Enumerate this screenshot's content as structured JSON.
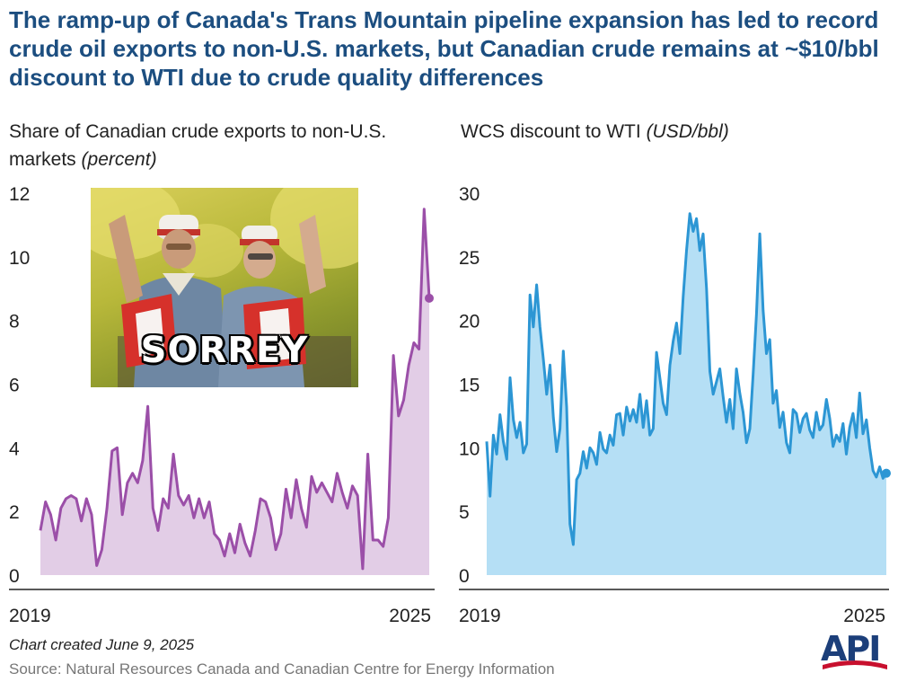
{
  "title": "The ramp-up of Canada's Trans Mountain pipeline expansion has led to record crude oil exports to non-U.S. markets, but Canadian crude remains at ~$10/bbl discount to WTI due to crude quality differences",
  "footer": {
    "date": "Chart created June 9, 2025",
    "source": "Source: Natural Resources Canada and Canadian Centre for Energy Information"
  },
  "logo": {
    "text": "API",
    "name": "api-logo"
  },
  "meme": {
    "caption": "SORREY"
  },
  "colors": {
    "title": "#1c4e80",
    "left_line": "#9b4fa8",
    "left_fill": "#e2cde6",
    "right_line": "#2c96d4",
    "right_fill": "#b5dff5"
  },
  "chart_data": [
    {
      "type": "area",
      "title_main": "Share of Canadian crude exports to non-U.S. markets",
      "title_unit": "(percent)",
      "x_labels": [
        "2019",
        "2025"
      ],
      "ylim": [
        0,
        12
      ],
      "y_ticks": [
        "0",
        "2",
        "4",
        "6",
        "8",
        "10",
        "12"
      ],
      "x_start": "2019-01",
      "x_end": "2025-04",
      "values": [
        1.4,
        2.3,
        1.9,
        1.1,
        2.1,
        2.4,
        2.5,
        2.4,
        1.7,
        2.4,
        1.9,
        0.3,
        0.8,
        2.1,
        3.9,
        4.0,
        1.9,
        2.9,
        3.2,
        2.9,
        3.6,
        5.3,
        2.1,
        1.4,
        2.4,
        2.1,
        3.8,
        2.5,
        2.2,
        2.5,
        1.8,
        2.4,
        1.8,
        2.3,
        1.3,
        1.1,
        0.6,
        1.3,
        0.7,
        1.6,
        1.0,
        0.6,
        1.4,
        2.4,
        2.3,
        1.8,
        0.8,
        1.3,
        2.7,
        1.8,
        3.0,
        2.1,
        1.5,
        3.1,
        2.6,
        2.9,
        2.6,
        2.3,
        3.2,
        2.6,
        2.1,
        2.8,
        2.5,
        0.2,
        3.8,
        1.1,
        1.1,
        0.9,
        1.8,
        6.9,
        5.0,
        5.5,
        6.6,
        7.3,
        7.1,
        11.5,
        8.7
      ],
      "line_color": "#9b4fa8",
      "fill_color": "#e2cde6"
    },
    {
      "type": "area",
      "title_main": "WCS discount to WTI",
      "title_unit": "(USD/bbl)",
      "x_labels": [
        "2019",
        "2025"
      ],
      "ylim": [
        0,
        30
      ],
      "y_ticks": [
        "0",
        "5",
        "10",
        "15",
        "20",
        "25",
        "30"
      ],
      "x_start": "2019-01",
      "x_end": "2025-05",
      "values": [
        10.5,
        6.2,
        11,
        9.5,
        12.6,
        10.5,
        9.1,
        15.5,
        12.2,
        10.8,
        12,
        9.6,
        10.3,
        22,
        19.5,
        22.8,
        19.5,
        17,
        14.2,
        16.5,
        12.4,
        9.7,
        11.5,
        17.6,
        13.2,
        4,
        2.4,
        7.5,
        8,
        9.7,
        8.4,
        10,
        9.6,
        8.7,
        11.2,
        9.9,
        9.6,
        11,
        10.2,
        12.6,
        12.7,
        11,
        13.2,
        12.1,
        13,
        12,
        14.2,
        11.6,
        13.7,
        11,
        11.5,
        17.5,
        15.5,
        13.5,
        12.6,
        16.5,
        18.4,
        19.8,
        17.4,
        21.9,
        25.5,
        28.4,
        27,
        28,
        25.5,
        26.8,
        22.5,
        16,
        14.2,
        15.2,
        16.2,
        14,
        12,
        13.8,
        11.5,
        16.2,
        14.3,
        12.8,
        10.4,
        11.5,
        15.8,
        20.5,
        26.8,
        20.8,
        17.4,
        18.5,
        13.5,
        14.5,
        11.6,
        12.8,
        10.4,
        9.6,
        13,
        12.7,
        11.2,
        12.3,
        12.7,
        11.4,
        10.8,
        12.8,
        11.4,
        11.8,
        13.8,
        12.3,
        10.1,
        11,
        10.5,
        11.9,
        9.5,
        11.6,
        12.7,
        10.8,
        14.3,
        11.1,
        12.2,
        10,
        8.2,
        7.7,
        8.5,
        7.6,
        8
      ],
      "line_color": "#2c96d4",
      "fill_color": "#b5dff5"
    }
  ]
}
